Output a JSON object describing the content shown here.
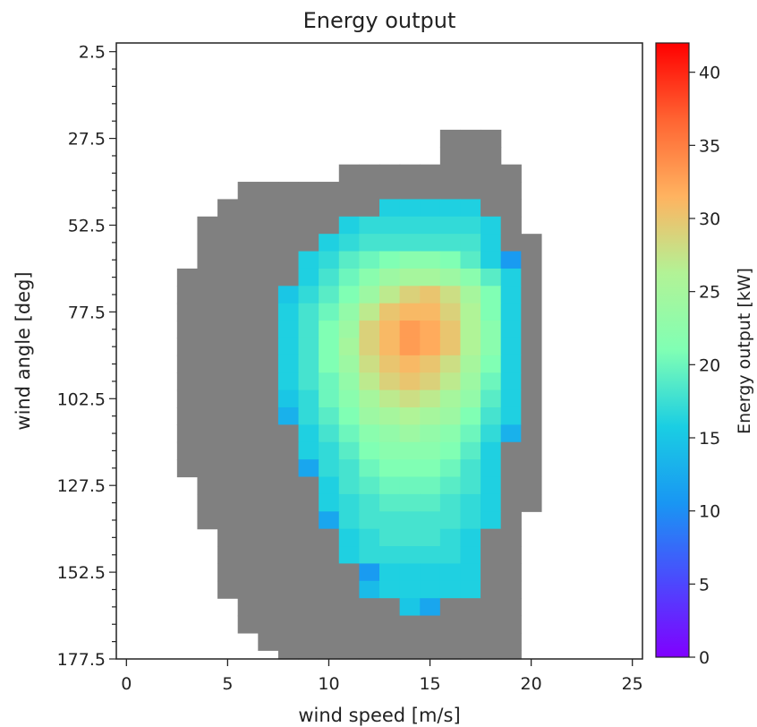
{
  "chart_data": {
    "type": "heatmap",
    "title": "Energy output",
    "xlabel": "wind speed [m/s]",
    "ylabel": "wind angle [deg]",
    "colorbar_label": "Energy output [kW]",
    "colormap": "rainbow",
    "nan_color": "#808080",
    "xlim": [
      -0.5,
      25.5
    ],
    "ylim": [
      177.5,
      0
    ],
    "xticks": [
      0,
      5,
      10,
      15,
      20,
      25
    ],
    "yticks": [
      2.5,
      27.5,
      52.5,
      77.5,
      102.5,
      127.5,
      152.5,
      177.5
    ],
    "colorbar_range": [
      0,
      42
    ],
    "colorbar_ticks": [
      0,
      5,
      10,
      15,
      20,
      25,
      30,
      35,
      40
    ],
    "cell": {
      "x_width": 1,
      "y_height": 5
    },
    "x_centers": [
      3,
      4,
      5,
      6,
      7,
      8,
      9,
      10,
      11,
      12,
      13,
      14,
      15,
      16,
      17,
      18,
      19,
      20
    ],
    "y_centers": [
      27.5,
      32.5,
      37.5,
      42.5,
      47.5,
      52.5,
      57.5,
      62.5,
      67.5,
      72.5,
      77.5,
      82.5,
      87.5,
      92.5,
      97.5,
      102.5,
      107.5,
      112.5,
      117.5,
      122.5,
      127.5,
      132.5,
      137.5,
      142.5,
      147.5,
      152.5,
      157.5,
      162.5,
      167.5,
      172.5,
      177.5
    ],
    "values": [
      [
        null,
        null,
        null,
        null,
        null,
        null,
        null,
        null,
        null,
        null,
        null,
        null,
        null,
        "nan",
        "nan",
        "nan",
        null,
        null
      ],
      [
        null,
        null,
        null,
        null,
        null,
        null,
        null,
        null,
        null,
        null,
        null,
        null,
        null,
        "nan",
        "nan",
        "nan",
        null,
        null
      ],
      [
        null,
        null,
        null,
        null,
        null,
        null,
        null,
        null,
        "nan",
        "nan",
        "nan",
        "nan",
        "nan",
        "nan",
        "nan",
        "nan",
        "nan",
        null
      ],
      [
        null,
        null,
        null,
        "nan",
        "nan",
        "nan",
        "nan",
        "nan",
        "nan",
        "nan",
        "nan",
        "nan",
        "nan",
        "nan",
        "nan",
        "nan",
        "nan",
        null
      ],
      [
        null,
        null,
        "nan",
        "nan",
        "nan",
        "nan",
        "nan",
        "nan",
        "nan",
        "nan",
        16,
        16,
        16,
        16,
        16,
        "nan",
        "nan",
        null
      ],
      [
        null,
        "nan",
        "nan",
        "nan",
        "nan",
        "nan",
        "nan",
        "nan",
        16,
        17,
        17,
        17,
        17,
        17,
        17,
        16,
        "nan",
        null
      ],
      [
        null,
        "nan",
        "nan",
        "nan",
        "nan",
        "nan",
        "nan",
        16,
        17,
        18,
        18,
        18,
        18,
        18,
        18,
        16,
        "nan",
        "nan"
      ],
      [
        null,
        "nan",
        "nan",
        "nan",
        "nan",
        "nan",
        16,
        17,
        19,
        20,
        21,
        22,
        22,
        21,
        19,
        16,
        11,
        "nan"
      ],
      [
        "nan",
        "nan",
        "nan",
        "nan",
        "nan",
        "nan",
        16,
        18,
        20,
        22,
        24,
        25,
        25,
        24,
        22,
        19,
        16,
        "nan"
      ],
      [
        "nan",
        "nan",
        "nan",
        "nan",
        "nan",
        15,
        17,
        19,
        21,
        24,
        27,
        29,
        30,
        28,
        25,
        21,
        16,
        "nan"
      ],
      [
        "nan",
        "nan",
        "nan",
        "nan",
        "nan",
        16,
        18,
        20,
        23,
        27,
        30,
        31,
        31,
        29,
        26,
        21,
        16,
        "nan"
      ],
      [
        "nan",
        "nan",
        "nan",
        "nan",
        "nan",
        16,
        18,
        21,
        24,
        29,
        31,
        33,
        32,
        30,
        26,
        22,
        16,
        "nan"
      ],
      [
        "nan",
        "nan",
        "nan",
        "nan",
        "nan",
        16,
        18,
        21,
        25,
        29,
        31,
        33,
        32,
        30,
        26,
        22,
        16,
        "nan"
      ],
      [
        "nan",
        "nan",
        "nan",
        "nan",
        "nan",
        16,
        18,
        21,
        24,
        28,
        30,
        31,
        30,
        28,
        25,
        21,
        16,
        "nan"
      ],
      [
        "nan",
        "nan",
        "nan",
        "nan",
        "nan",
        16,
        18,
        20,
        23,
        27,
        29,
        30,
        29,
        27,
        24,
        20,
        16,
        "nan"
      ],
      [
        "nan",
        "nan",
        "nan",
        "nan",
        "nan",
        15,
        17,
        20,
        22,
        25,
        27,
        28,
        27,
        25,
        23,
        19,
        16,
        "nan"
      ],
      [
        "nan",
        "nan",
        "nan",
        "nan",
        "nan",
        13,
        17,
        19,
        21,
        24,
        25,
        26,
        25,
        24,
        21,
        18,
        16,
        "nan"
      ],
      [
        "nan",
        "nan",
        "nan",
        "nan",
        "nan",
        "nan",
        16,
        18,
        20,
        22,
        23,
        24,
        23,
        22,
        20,
        17,
        13,
        "nan"
      ],
      [
        "nan",
        "nan",
        "nan",
        "nan",
        "nan",
        "nan",
        16,
        17,
        19,
        21,
        22,
        22,
        22,
        21,
        19,
        16,
        "nan",
        "nan"
      ],
      [
        "nan",
        "nan",
        "nan",
        "nan",
        "nan",
        "nan",
        12,
        17,
        18,
        20,
        21,
        21,
        21,
        20,
        18,
        16,
        "nan",
        "nan"
      ],
      [
        null,
        "nan",
        "nan",
        "nan",
        "nan",
        "nan",
        "nan",
        16,
        18,
        19,
        20,
        20,
        20,
        19,
        18,
        16,
        "nan",
        "nan"
      ],
      [
        null,
        "nan",
        "nan",
        "nan",
        "nan",
        "nan",
        "nan",
        16,
        17,
        18,
        19,
        19,
        19,
        18,
        17,
        16,
        "nan",
        "nan"
      ],
      [
        null,
        "nan",
        "nan",
        "nan",
        "nan",
        "nan",
        "nan",
        12,
        17,
        18,
        18,
        18,
        18,
        18,
        17,
        16,
        "nan",
        null
      ],
      [
        null,
        null,
        "nan",
        "nan",
        "nan",
        "nan",
        "nan",
        "nan",
        16,
        17,
        18,
        18,
        18,
        17,
        16,
        "nan",
        "nan",
        null
      ],
      [
        null,
        null,
        "nan",
        "nan",
        "nan",
        "nan",
        "nan",
        "nan",
        16,
        17,
        17,
        17,
        17,
        17,
        16,
        "nan",
        "nan",
        null
      ],
      [
        null,
        null,
        "nan",
        "nan",
        "nan",
        "nan",
        "nan",
        "nan",
        "nan",
        11,
        16,
        16,
        16,
        16,
        16,
        "nan",
        "nan",
        null
      ],
      [
        null,
        null,
        "nan",
        "nan",
        "nan",
        "nan",
        "nan",
        "nan",
        "nan",
        14,
        16,
        16,
        16,
        16,
        16,
        "nan",
        "nan",
        null
      ],
      [
        null,
        null,
        null,
        "nan",
        "nan",
        "nan",
        "nan",
        "nan",
        "nan",
        "nan",
        "nan",
        15,
        12,
        "nan",
        "nan",
        "nan",
        "nan",
        null
      ],
      [
        null,
        null,
        null,
        "nan",
        "nan",
        "nan",
        "nan",
        "nan",
        "nan",
        "nan",
        "nan",
        "nan",
        "nan",
        "nan",
        "nan",
        "nan",
        "nan",
        null
      ],
      [
        null,
        null,
        null,
        null,
        "nan",
        "nan",
        "nan",
        "nan",
        "nan",
        "nan",
        "nan",
        "nan",
        "nan",
        "nan",
        "nan",
        "nan",
        "nan",
        null
      ],
      [
        null,
        null,
        null,
        null,
        null,
        "nan",
        "nan",
        "nan",
        "nan",
        "nan",
        "nan",
        "nan",
        "nan",
        "nan",
        "nan",
        "nan",
        "nan",
        null
      ]
    ]
  }
}
